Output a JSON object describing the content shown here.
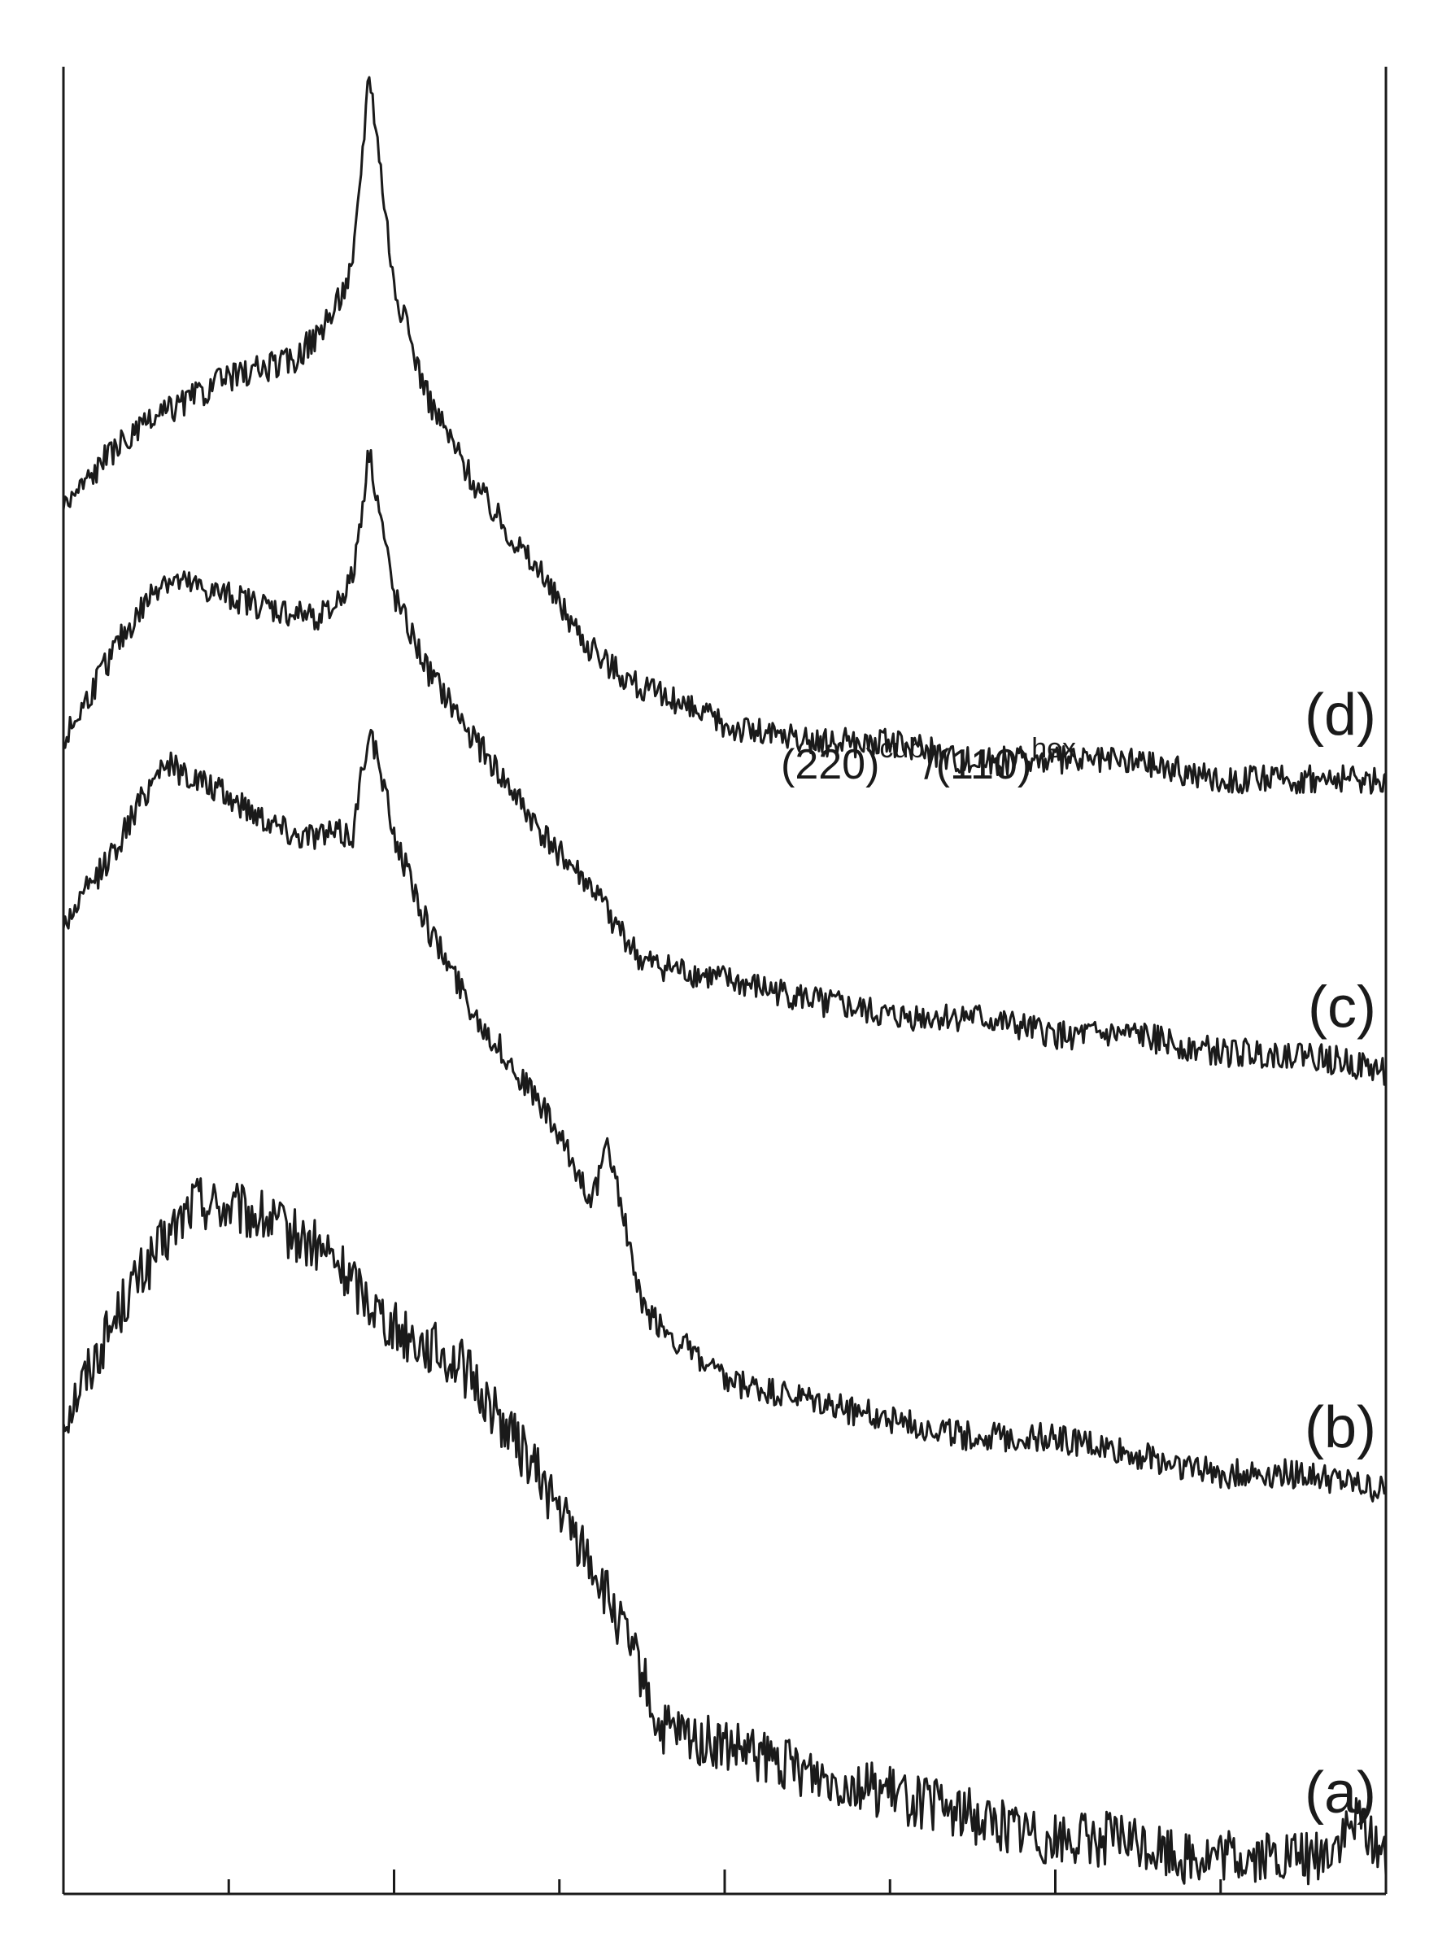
{
  "chart_data": {
    "type": "line",
    "title": "",
    "xlabel": "",
    "ylabel": "",
    "xlim": [
      0,
      8
    ],
    "ylim": [
      0,
      100
    ],
    "x_ticks": [
      0,
      1,
      2,
      3,
      4,
      5,
      6,
      7,
      8
    ],
    "tick_labels_shown": false,
    "grid": false,
    "legend": "none",
    "stacked_offset_traces": true,
    "annotation": {
      "base": "(220)",
      "sup1": "cub",
      "mid": "/(110)",
      "sup2": "hex"
    },
    "series": [
      {
        "label": "(a)",
        "x": [
          0,
          0.4,
          0.8,
          1.2,
          1.6,
          2.0,
          2.4,
          2.8,
          3.2,
          3.5,
          3.6,
          4.0,
          4.4,
          4.8,
          5.2,
          5.6,
          6.0,
          6.4,
          6.8,
          7.2,
          7.6,
          7.85,
          8.0
        ],
        "y": [
          26,
          33,
          38,
          37,
          35,
          31,
          29,
          24,
          18,
          12,
          9,
          8,
          7,
          6,
          5,
          4,
          3,
          3,
          2,
          2,
          2,
          4,
          2
        ]
      },
      {
        "label": "(b)",
        "x": [
          0,
          0.3,
          0.6,
          1.0,
          1.4,
          1.75,
          1.85,
          2.0,
          2.2,
          2.5,
          2.9,
          3.2,
          3.3,
          3.5,
          4.0,
          4.5,
          5.0,
          5.5,
          6.0,
          6.5,
          7.0,
          7.5,
          8.0
        ],
        "y": [
          53,
          57,
          62,
          60,
          58,
          58,
          64,
          58,
          53,
          48,
          43,
          38,
          41,
          32,
          28,
          27,
          26,
          25,
          25,
          24,
          23,
          23,
          22
        ]
      },
      {
        "label": "(c)",
        "x": [
          0,
          0.3,
          0.6,
          1.0,
          1.4,
          1.6,
          1.75,
          1.85,
          2.0,
          2.2,
          2.5,
          2.9,
          3.2,
          3.5,
          4.0,
          4.5,
          5.0,
          5.5,
          6.0,
          6.5,
          7.0,
          7.5,
          8.0
        ],
        "y": [
          63,
          68,
          72,
          71,
          70,
          70,
          72,
          79,
          71,
          67,
          63,
          58,
          55,
          51,
          50,
          49,
          48,
          48,
          47,
          47,
          46,
          46,
          45
        ]
      },
      {
        "label": "(d)",
        "x": [
          0,
          0.3,
          0.6,
          1.0,
          1.4,
          1.6,
          1.75,
          1.85,
          2.0,
          2.2,
          2.5,
          2.9,
          3.2,
          3.5,
          4.0,
          4.5,
          5.0,
          5.5,
          6.0,
          6.5,
          7.0,
          7.5,
          8.0
        ],
        "y": [
          76,
          79,
          81,
          83,
          84,
          86,
          89,
          100,
          88,
          82,
          77,
          72,
          68,
          66,
          64,
          63,
          63,
          62,
          62,
          62,
          61,
          61,
          61
        ]
      }
    ]
  }
}
